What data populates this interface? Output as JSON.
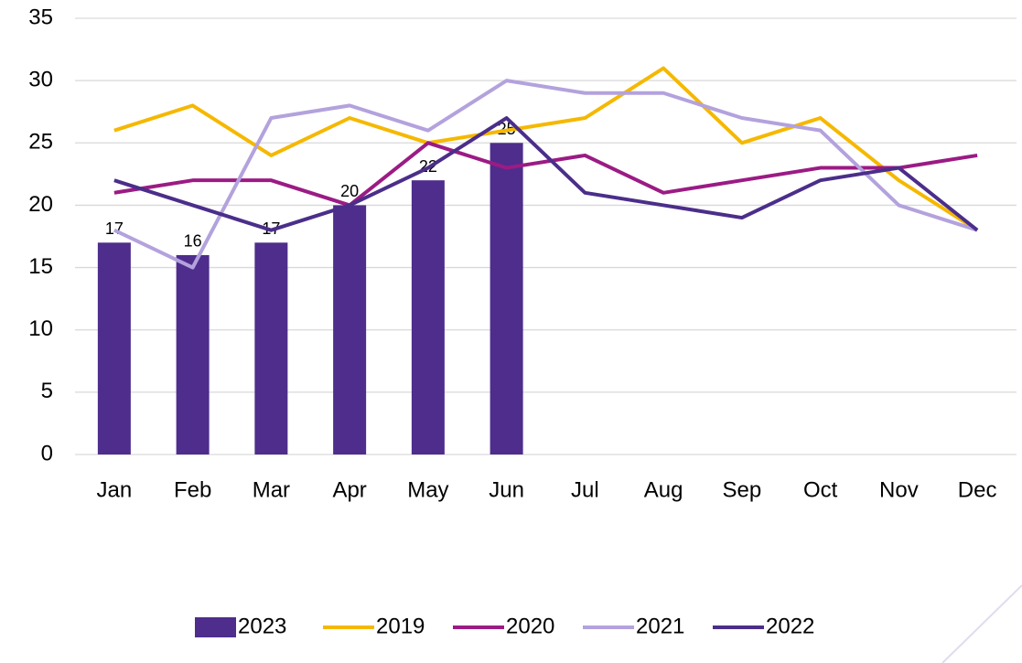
{
  "chart_data": {
    "type": "combo",
    "categories": [
      "Jan",
      "Feb",
      "Mar",
      "Apr",
      "May",
      "Jun",
      "Jul",
      "Aug",
      "Sep",
      "Oct",
      "Nov",
      "Dec"
    ],
    "series": [
      {
        "name": "2023",
        "type": "bar",
        "color": "#4e2d8c",
        "data_labels": true,
        "values": [
          17,
          16,
          17,
          20,
          22,
          25,
          null,
          null,
          null,
          null,
          null,
          null
        ]
      },
      {
        "name": "2019",
        "type": "line",
        "color": "#f5b800",
        "values": [
          26,
          28,
          24,
          27,
          25,
          26,
          27,
          31,
          25,
          27,
          22,
          18
        ]
      },
      {
        "name": "2020",
        "type": "line",
        "color": "#9b1b84",
        "values": [
          21,
          22,
          22,
          20,
          25,
          23,
          24,
          21,
          22,
          23,
          23,
          24
        ]
      },
      {
        "name": "2021",
        "type": "line",
        "color": "#b3a2dd",
        "values": [
          18,
          15,
          27,
          28,
          26,
          30,
          29,
          29,
          27,
          26,
          20,
          18
        ]
      },
      {
        "name": "2022",
        "type": "line",
        "color": "#4b2e8a",
        "values": [
          22,
          20,
          18,
          20,
          23,
          27,
          21,
          20,
          19,
          22,
          23,
          18
        ]
      }
    ],
    "ylim": [
      0,
      35
    ],
    "yticks": [
      0,
      5,
      10,
      15,
      20,
      25,
      30,
      35
    ],
    "grid": true,
    "legend": "bottom"
  }
}
